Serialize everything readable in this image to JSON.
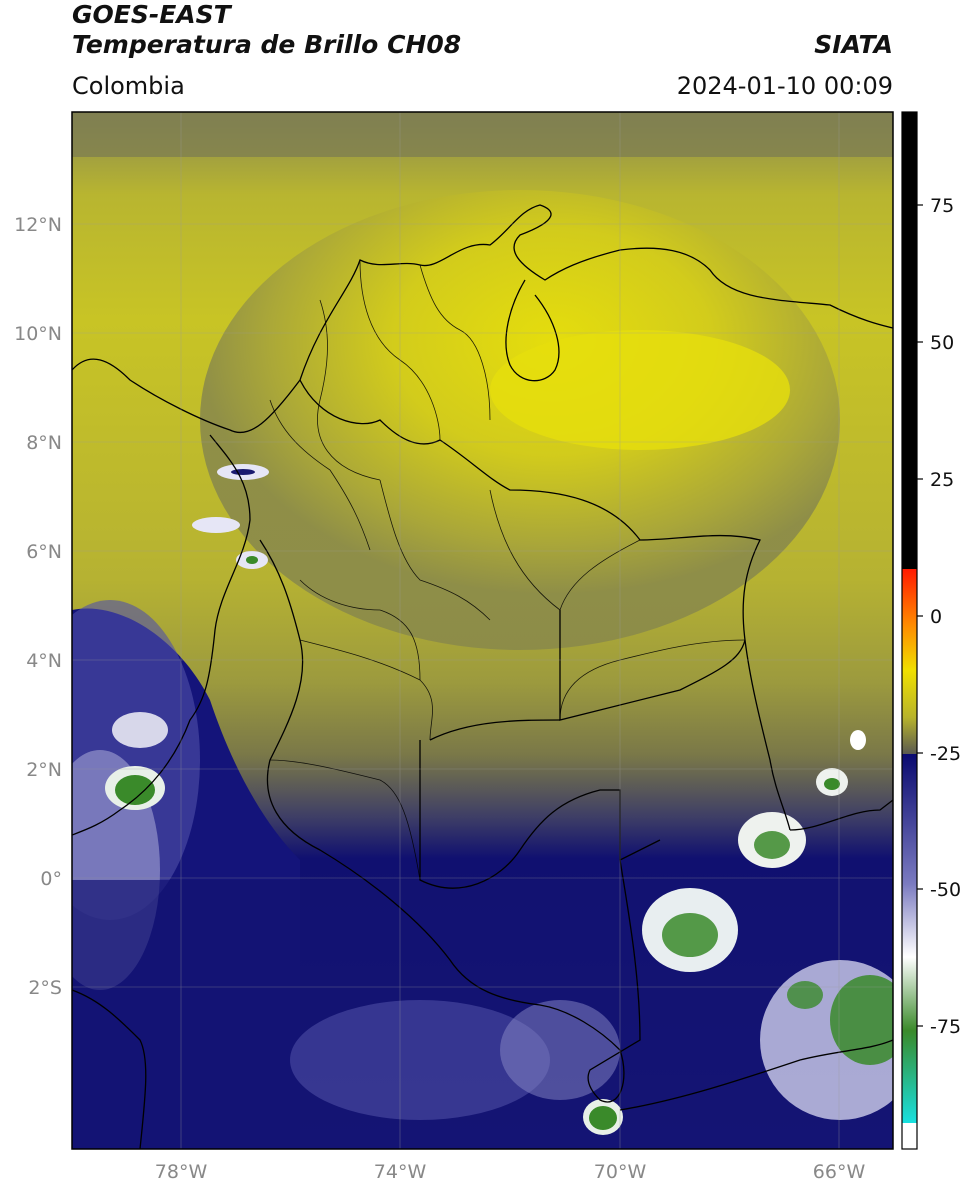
{
  "header": {
    "line1": "GOES-EAST",
    "line2": "Temperatura de Brillo CH08",
    "region": "Colombia",
    "brand": "SIATA",
    "datetime": "2024-01-10 00:09"
  },
  "map": {
    "lat_labels": [
      "12°N",
      "10°N",
      "8°N",
      "6°N",
      "4°N",
      "2°N",
      "0°",
      "2°S"
    ],
    "lon_labels": [
      "78°W",
      "74°W",
      "70°W",
      "66°W"
    ],
    "extent": {
      "lon_min": -80,
      "lon_max": -65,
      "lat_min": -5,
      "lat_max": 14
    }
  },
  "colorbar": {
    "ticks": [
      "75",
      "50",
      "25",
      "0",
      "-25",
      "-50",
      "-75"
    ],
    "colors": {
      "black": "#000000",
      "red": "#e51c00",
      "orange": "#ffa500",
      "yellow": "#e8e00a",
      "olive": "#6e6e4a",
      "navy": "#0a0a6e",
      "white": "#ffffff",
      "green": "#3a8a2a",
      "cyan": "#18e0e0"
    }
  }
}
